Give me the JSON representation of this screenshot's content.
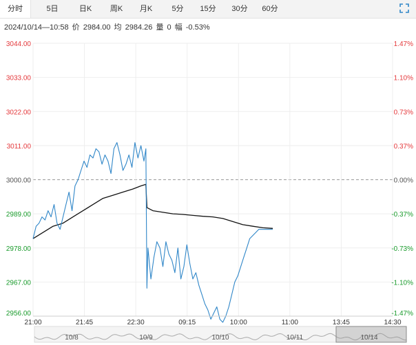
{
  "tabs": [
    {
      "label": "分时",
      "active": true
    },
    {
      "label": "5日",
      "active": false
    },
    {
      "label": "日K",
      "active": false
    },
    {
      "label": "周K",
      "active": false
    },
    {
      "label": "月K",
      "active": false
    },
    {
      "label": "5分",
      "active": false
    },
    {
      "label": "15分",
      "active": false
    },
    {
      "label": "30分",
      "active": false
    },
    {
      "label": "60分",
      "active": false
    }
  ],
  "info": {
    "datetime": "2024/10/14—10:58",
    "price_label": "价",
    "price": "2984.00",
    "avg_label": "均",
    "avg": "2984.26",
    "volume_label": "量",
    "volume": "0",
    "change_label": "幅",
    "change": "-0.53%"
  },
  "colors": {
    "price_line": "#2f86c8",
    "avg_line": "#111111",
    "up": "#e4393c",
    "down": "#1a9b2c",
    "neutral": "#555555",
    "grid": "#eeeeee",
    "base": "#999999"
  },
  "chart_data": {
    "type": "line",
    "base_price": 3000.0,
    "ylim": [
      2956.0,
      3044.0
    ],
    "y_ticks_left": [
      "3044.00",
      "3033.00",
      "3022.00",
      "3011.00",
      "3000.00",
      "2989.00",
      "2978.00",
      "2967.00",
      "2956.00"
    ],
    "y_ticks_right": [
      "1.47%",
      "1.10%",
      "0.73%",
      "0.37%",
      "0.00%",
      "-0.37%",
      "-0.73%",
      "-1.10%",
      "-1.47%"
    ],
    "x_ticks": [
      "21:00",
      "21:45",
      "22:30",
      "09:15",
      "10:00",
      "11:00",
      "13:45",
      "14:30"
    ],
    "x_range": [
      0,
      360
    ],
    "series": [
      {
        "role": "price",
        "x": [
          0,
          3,
          6,
          9,
          12,
          15,
          18,
          21,
          24,
          27,
          30,
          33,
          36,
          39,
          42,
          45,
          48,
          51,
          54,
          57,
          60,
          63,
          66,
          69,
          72,
          75,
          78,
          81,
          84,
          87,
          90,
          93,
          96,
          99,
          102,
          105,
          108,
          111,
          113,
          114,
          115,
          118,
          121,
          124,
          127,
          130,
          133,
          136,
          139,
          142,
          145,
          148,
          151,
          154,
          157,
          160,
          163,
          166,
          169,
          172,
          175,
          178,
          181,
          184,
          187,
          190,
          193,
          196,
          199,
          202,
          205,
          208,
          211,
          214,
          217,
          220,
          223,
          226,
          229,
          232,
          235,
          238,
          240
        ],
        "y": [
          2981,
          2985,
          2986,
          2988,
          2987,
          2990,
          2988,
          2992,
          2986,
          2984,
          2988,
          2992,
          2996,
          2990,
          2998,
          3000,
          3003,
          3006,
          3004,
          3008,
          3007,
          3010,
          3009,
          3005,
          3008,
          3006,
          3002,
          3010,
          3012,
          3008,
          3003,
          3005,
          3008,
          3004,
          3012,
          3007,
          3011,
          3006,
          3010,
          2965,
          2978,
          2968,
          2975,
          2980,
          2978,
          2972,
          2980,
          2976,
          2974,
          2970,
          2978,
          2968,
          2972,
          2979,
          2973,
          2968,
          2970,
          2966,
          2963,
          2960,
          2958,
          2955,
          2957,
          2959,
          2955,
          2954,
          2956,
          2959,
          2963,
          2967,
          2969,
          2972,
          2975,
          2978,
          2981,
          2982,
          2983,
          2984,
          2984,
          2984,
          2984,
          2984,
          2984
        ]
      },
      {
        "role": "average",
        "x": [
          0,
          10,
          20,
          30,
          40,
          50,
          60,
          70,
          80,
          90,
          100,
          108,
          113,
          114,
          120,
          130,
          140,
          150,
          160,
          170,
          180,
          190,
          200,
          210,
          220,
          230,
          240
        ],
        "y": [
          2981,
          2983,
          2985,
          2986,
          2988,
          2990,
          2992,
          2994,
          2995,
          2996,
          2997,
          2998,
          2998.5,
          2991,
          2990,
          2989.5,
          2989,
          2988.8,
          2988.5,
          2988.2,
          2988,
          2987.5,
          2986.5,
          2985.5,
          2985,
          2984.5,
          2984.3
        ]
      }
    ],
    "date_navigator": {
      "labels": [
        "10/8",
        "10/9",
        "10/10",
        "10/11",
        "10/14"
      ],
      "selected_label": "10/14"
    }
  }
}
